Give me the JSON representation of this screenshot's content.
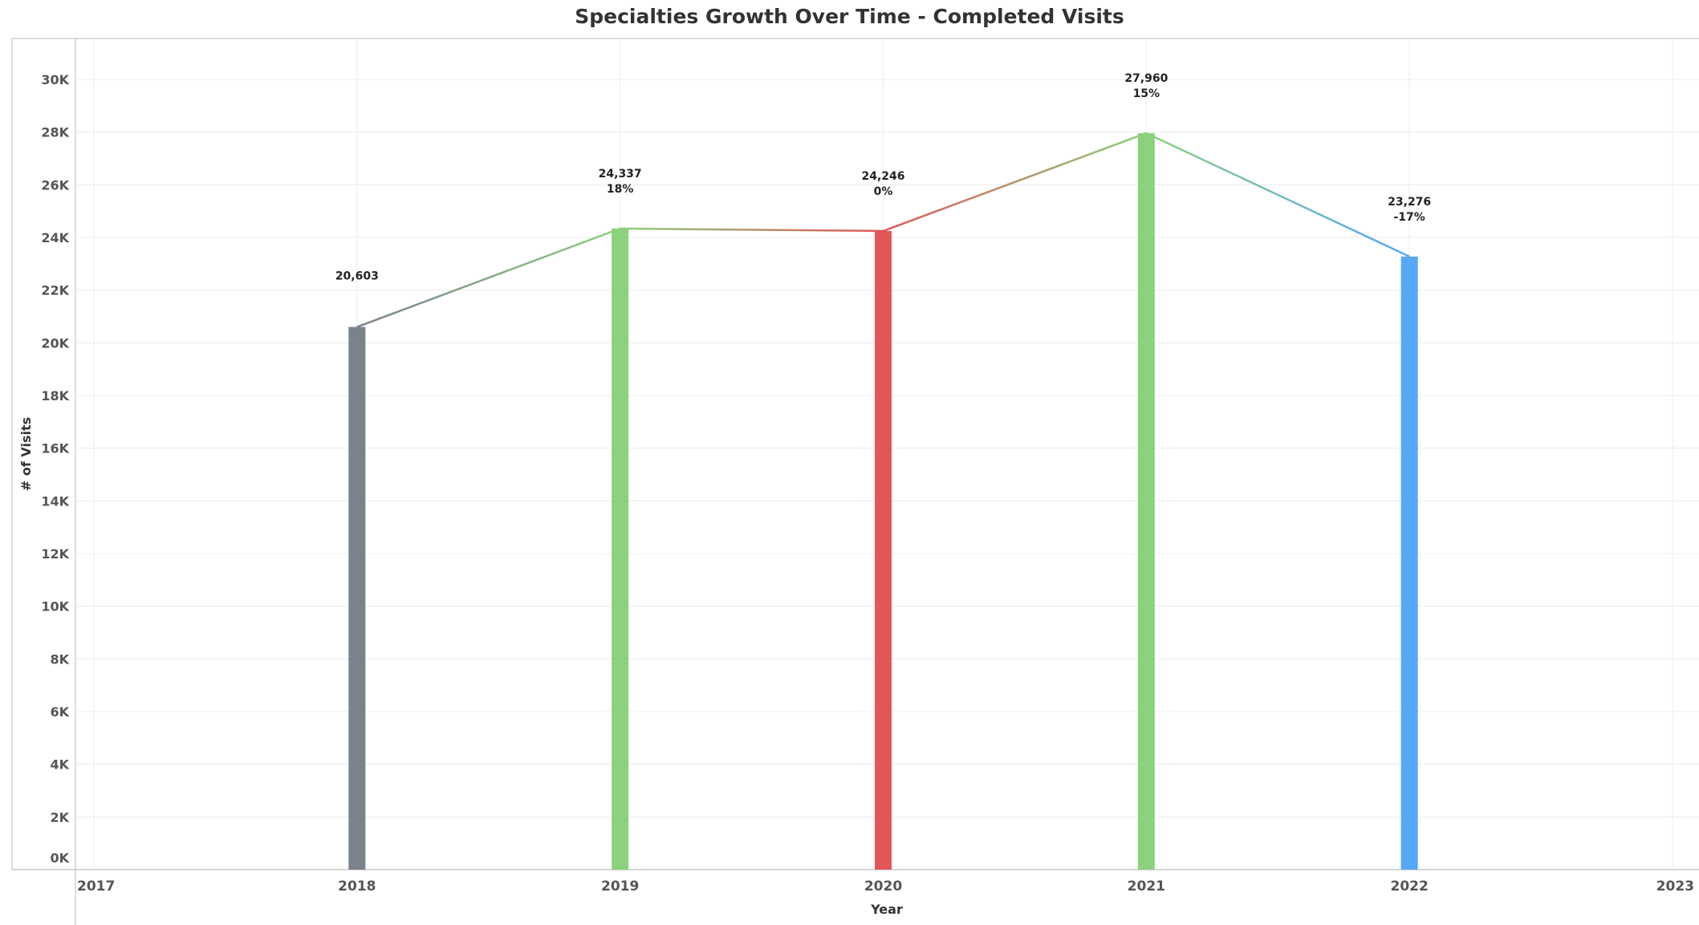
{
  "chart_data": {
    "type": "bar",
    "title": "Specialties Growth Over Time - Completed Visits",
    "xlabel": "Year",
    "ylabel": "# of Visits",
    "x_ticks": [
      "2017",
      "2018",
      "2019",
      "2020",
      "2021",
      "2022",
      "2023"
    ],
    "xlim": [
      2017,
      2023
    ],
    "ylim": [
      0,
      31000
    ],
    "y_ticks": [
      0,
      2000,
      4000,
      6000,
      8000,
      10000,
      12000,
      14000,
      16000,
      18000,
      20000,
      22000,
      24000,
      26000,
      28000,
      30000
    ],
    "y_tick_labels": [
      "0K",
      "2K",
      "4K",
      "6K",
      "8K",
      "10K",
      "12K",
      "14K",
      "16K",
      "18K",
      "20K",
      "22K",
      "24K",
      "26K",
      "28K",
      "30K"
    ],
    "grid": true,
    "overlay_line": true,
    "points": [
      {
        "x": 2018,
        "value": 20603,
        "value_label": "20,603",
        "pct_label": "",
        "color": "#7a828c"
      },
      {
        "x": 2019,
        "value": 24337,
        "value_label": "24,337",
        "pct_label": "18%",
        "color": "#8cd17d"
      },
      {
        "x": 2020,
        "value": 24246,
        "value_label": "24,246",
        "pct_label": "0%",
        "color": "#e15759"
      },
      {
        "x": 2021,
        "value": 27960,
        "value_label": "27,960",
        "pct_label": "15%",
        "color": "#8cd17d"
      },
      {
        "x": 2022,
        "value": 23276,
        "value_label": "23,276",
        "pct_label": "-17%",
        "color": "#56a8f5"
      }
    ]
  }
}
